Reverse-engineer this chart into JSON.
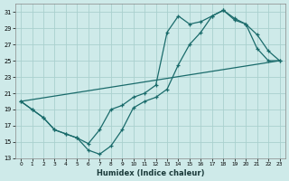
{
  "xlabel": "Humidex (Indice chaleur)",
  "bg_color": "#ceeae9",
  "grid_color": "#aad0ce",
  "line_color": "#1a6b6b",
  "xlim": [
    -0.5,
    23.5
  ],
  "ylim": [
    13,
    32
  ],
  "yticks": [
    13,
    15,
    17,
    19,
    21,
    23,
    25,
    27,
    29,
    31
  ],
  "xticks": [
    0,
    1,
    2,
    3,
    4,
    5,
    6,
    7,
    8,
    9,
    10,
    11,
    12,
    13,
    14,
    15,
    16,
    17,
    18,
    19,
    20,
    21,
    22,
    23
  ],
  "curve1_x": [
    0,
    1,
    2,
    3,
    4,
    5,
    6,
    7,
    8,
    9,
    10,
    11,
    12,
    13,
    14,
    15,
    16,
    17,
    18,
    19,
    20,
    21,
    22,
    23
  ],
  "curve1_y": [
    20.0,
    19.0,
    18.0,
    16.5,
    16.0,
    15.5,
    14.0,
    13.5,
    14.5,
    16.5,
    19.2,
    20.0,
    20.5,
    21.5,
    24.5,
    27.0,
    28.5,
    30.5,
    31.2,
    30.2,
    29.5,
    28.2,
    26.2,
    25.0
  ],
  "curve2_x": [
    0,
    1,
    2,
    3,
    4,
    5,
    6,
    7,
    8,
    9,
    10,
    11,
    12,
    13,
    14,
    15,
    16,
    17,
    18,
    19,
    20,
    21,
    22,
    23
  ],
  "curve2_y": [
    20.0,
    19.0,
    18.0,
    16.5,
    16.0,
    15.5,
    14.8,
    16.5,
    19.0,
    19.5,
    20.5,
    21.0,
    22.0,
    28.5,
    30.5,
    29.5,
    29.8,
    30.5,
    31.2,
    30.0,
    29.5,
    26.5,
    25.0,
    25.0
  ],
  "line_x": [
    0,
    23
  ],
  "line_y": [
    20.0,
    25.0
  ]
}
